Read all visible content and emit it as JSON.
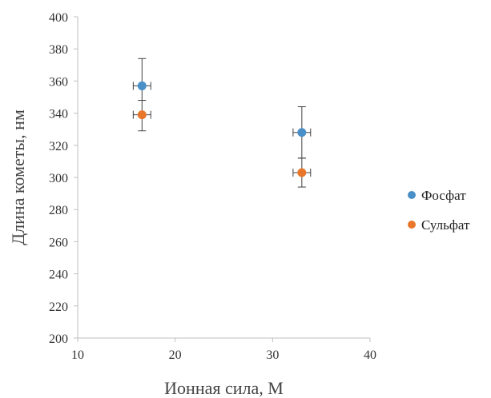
{
  "chart_data": {
    "type": "scatter",
    "xlabel": "Ионная сила, М",
    "ylabel": "Длина кометы, нм",
    "xlim": [
      10,
      40
    ],
    "ylim": [
      200,
      400
    ],
    "xticks": [
      10,
      20,
      30,
      40
    ],
    "yticks": [
      200,
      220,
      240,
      260,
      280,
      300,
      320,
      340,
      360,
      380,
      400
    ],
    "grid": false,
    "legend_position": "right",
    "series": [
      {
        "name": "Фосфат",
        "color": "#4a90c8",
        "points": [
          {
            "x": 16.6,
            "y": 357,
            "yerr_low": 348,
            "yerr_high": 374,
            "xerr": 0.9
          },
          {
            "x": 33.0,
            "y": 328,
            "yerr_low": 312,
            "yerr_high": 344,
            "xerr": 0.9
          }
        ]
      },
      {
        "name": "Сульфат",
        "color": "#e8772c",
        "points": [
          {
            "x": 16.6,
            "y": 339,
            "yerr_low": 329,
            "yerr_high": 348,
            "xerr": 0.9
          },
          {
            "x": 33.0,
            "y": 303,
            "yerr_low": 294,
            "yerr_high": 312,
            "xerr": 0.9
          }
        ]
      }
    ]
  }
}
